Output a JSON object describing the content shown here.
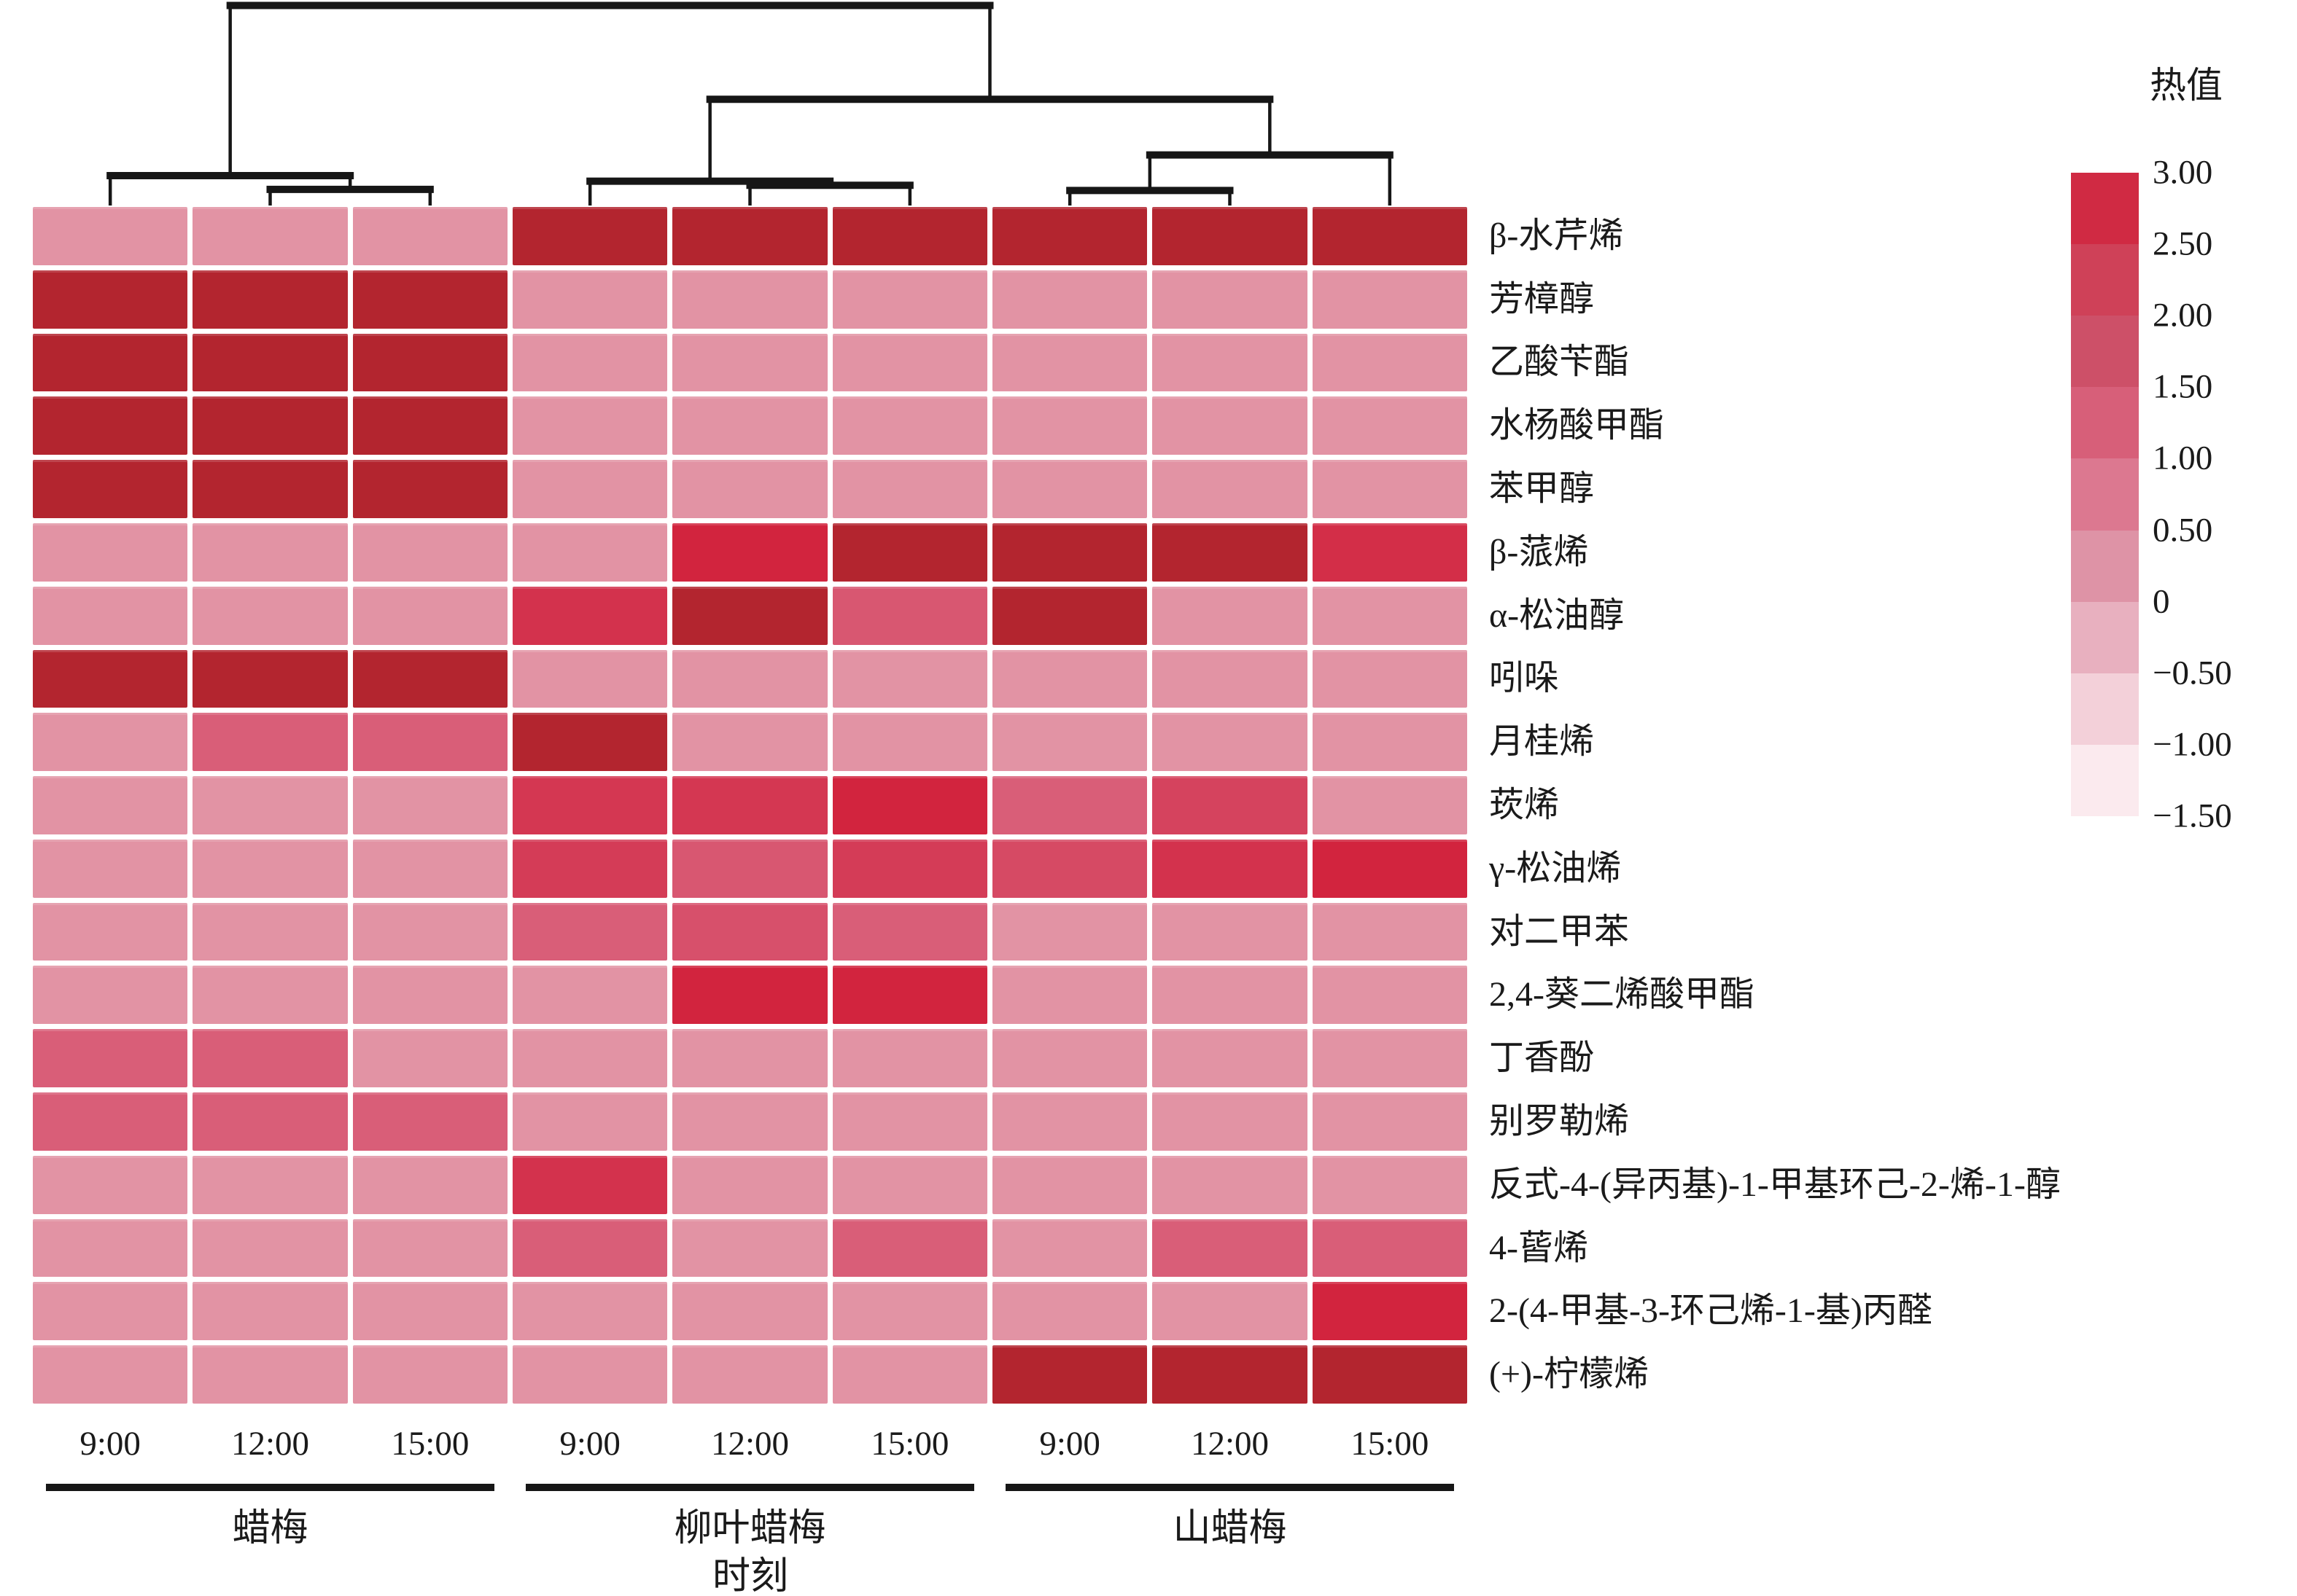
{
  "legend": {
    "title": "热值",
    "ticks": [
      "3.00",
      "2.50",
      "2.00",
      "1.50",
      "1.00",
      "0.50",
      "0",
      "−0.50",
      "−1.00",
      "−1.50"
    ],
    "segment_colors": [
      "#D02A43",
      "#CF4158",
      "#CD5068",
      "#D75F79",
      "#DC7890",
      "#DE93A6",
      "#E8B0BF",
      "#F3D0D9",
      "#FBEAEE"
    ]
  },
  "x_axis": {
    "title": "时刻",
    "groups": [
      {
        "label": "蜡梅",
        "times": [
          "9:00",
          "12:00",
          "15:00"
        ]
      },
      {
        "label": "柳叶蜡梅",
        "times": [
          "9:00",
          "12:00",
          "15:00"
        ]
      },
      {
        "label": "山蜡梅",
        "times": [
          "9:00",
          "12:00",
          "15:00"
        ]
      }
    ]
  },
  "chart_data": {
    "type": "heatmap",
    "title": "",
    "xlabel": "时刻",
    "ylabel": "",
    "legend_title": "热值",
    "value_range": [
      -1.5,
      3.0
    ],
    "columns": [
      {
        "group": "蜡梅",
        "time": "9:00"
      },
      {
        "group": "蜡梅",
        "time": "12:00"
      },
      {
        "group": "蜡梅",
        "time": "15:00"
      },
      {
        "group": "柳叶蜡梅",
        "time": "9:00"
      },
      {
        "group": "柳叶蜡梅",
        "time": "12:00"
      },
      {
        "group": "柳叶蜡梅",
        "time": "15:00"
      },
      {
        "group": "山蜡梅",
        "time": "9:00"
      },
      {
        "group": "山蜡梅",
        "time": "12:00"
      },
      {
        "group": "山蜡梅",
        "time": "15:00"
      }
    ],
    "rows": [
      "β-水芹烯",
      "芳樟醇",
      "乙酸苄酯",
      "水杨酸甲酯",
      "苯甲醇",
      "β-蒎烯",
      "α-松油醇",
      "吲哚",
      "月桂烯",
      "莰烯",
      "γ-松油烯",
      "对二甲苯",
      "2,4-葵二烯酸甲酯",
      "丁香酚",
      "别罗勒烯",
      "反式-4-(异丙基)-1-甲基环己-2-烯-1-醇",
      "4-蒈烯",
      "2-(4-甲基-3-环己烯-1-基)丙醛",
      "(+)-柠檬烯"
    ],
    "values": [
      [
        0.3,
        0.3,
        0.3,
        3.0,
        3.0,
        3.0,
        3.0,
        3.0,
        3.0
      ],
      [
        3.0,
        3.0,
        3.0,
        0.3,
        0.3,
        0.3,
        0.3,
        0.3,
        0.3
      ],
      [
        3.0,
        3.0,
        3.0,
        0.3,
        0.3,
        0.3,
        0.3,
        0.3,
        0.3
      ],
      [
        3.0,
        3.0,
        3.0,
        0.3,
        0.3,
        0.3,
        0.3,
        0.3,
        0.3
      ],
      [
        3.0,
        3.0,
        3.0,
        0.3,
        0.3,
        0.3,
        0.3,
        0.3,
        0.3
      ],
      [
        0.3,
        0.3,
        0.3,
        0.3,
        2.5,
        3.0,
        3.0,
        3.0,
        2.3
      ],
      [
        0.3,
        0.3,
        0.3,
        2.2,
        3.0,
        1.6,
        3.0,
        0.3,
        0.3
      ],
      [
        3.0,
        3.0,
        3.0,
        0.3,
        0.3,
        0.3,
        0.3,
        0.3,
        0.3
      ],
      [
        0.3,
        1.5,
        1.5,
        3.0,
        0.3,
        0.3,
        0.3,
        0.3,
        0.3
      ],
      [
        0.3,
        0.3,
        0.3,
        2.1,
        2.1,
        2.5,
        1.5,
        1.9,
        0.3
      ],
      [
        0.3,
        0.3,
        0.3,
        2.0,
        1.6,
        2.0,
        1.8,
        2.2,
        2.5
      ],
      [
        0.3,
        0.3,
        0.3,
        1.5,
        1.7,
        1.5,
        0.3,
        0.3,
        0.3
      ],
      [
        0.3,
        0.3,
        0.3,
        0.3,
        2.5,
        2.5,
        0.3,
        0.3,
        0.3
      ],
      [
        1.5,
        1.5,
        0.3,
        0.3,
        0.3,
        0.3,
        0.3,
        0.3,
        0.3
      ],
      [
        1.5,
        1.5,
        1.5,
        0.3,
        0.3,
        0.3,
        0.3,
        0.3,
        0.3
      ],
      [
        0.3,
        0.3,
        0.3,
        2.2,
        0.3,
        0.3,
        0.3,
        0.3,
        0.3
      ],
      [
        0.3,
        0.3,
        0.3,
        1.5,
        0.3,
        1.5,
        0.3,
        1.5,
        1.5
      ],
      [
        0.3,
        0.3,
        0.3,
        0.3,
        0.3,
        0.3,
        0.3,
        0.3,
        2.5
      ],
      [
        0.3,
        0.3,
        0.3,
        0.3,
        0.3,
        0.3,
        3.0,
        3.0,
        3.0
      ]
    ],
    "color_scale": {
      "anchors": [
        [
          3.0,
          "#B3252F"
        ],
        [
          2.5,
          "#D2243E"
        ],
        [
          2.0,
          "#D43C57"
        ],
        [
          1.5,
          "#D95E78"
        ],
        [
          1.0,
          "#DC7289"
        ],
        [
          0.5,
          "#E0899B"
        ],
        [
          0.0,
          "#E5A2B2"
        ],
        [
          -0.5,
          "#EDBAC7"
        ],
        [
          -1.0,
          "#F6D9E0"
        ],
        [
          -1.5,
          "#FDF1F4"
        ]
      ]
    },
    "column_dendrogram": {
      "height": 0.97,
      "children": [
        {
          "height": 0.145,
          "children": [
            {
              "leaf": 0
            },
            {
              "height": 0.078,
              "children": [
                {
                  "leaf": 1
                },
                {
                  "leaf": 2
                }
              ]
            }
          ]
        },
        {
          "height": 0.515,
          "children": [
            {
              "height": 0.118,
              "children": [
                {
                  "leaf": 3
                },
                {
                  "height": 0.098,
                  "children": [
                    {
                      "leaf": 4
                    },
                    {
                      "leaf": 5
                    }
                  ]
                }
              ]
            },
            {
              "height": 0.245,
              "children": [
                {
                  "height": 0.073,
                  "children": [
                    {
                      "leaf": 6
                    },
                    {
                      "leaf": 7
                    }
                  ]
                },
                {
                  "leaf": 8
                }
              ]
            }
          ]
        }
      ]
    }
  }
}
